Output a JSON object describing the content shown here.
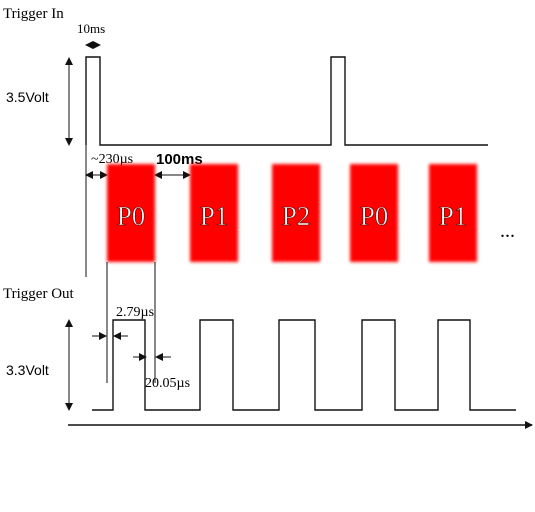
{
  "trigger_in": {
    "title": "Trigger In",
    "amplitude_label": "3.5Volt",
    "pulse_width_label": "10ms"
  },
  "pulses": {
    "delay_label": "~230µs",
    "period_label": "100ms",
    "blocks": [
      "P0",
      "P1",
      "P2",
      "P0",
      "P1"
    ],
    "continuation": "...",
    "color": "#ff0000"
  },
  "trigger_out": {
    "title": "Trigger Out",
    "amplitude_label": "3.3Volt",
    "rise_label": "2.79µs",
    "fall_label": "20.05µs"
  }
}
